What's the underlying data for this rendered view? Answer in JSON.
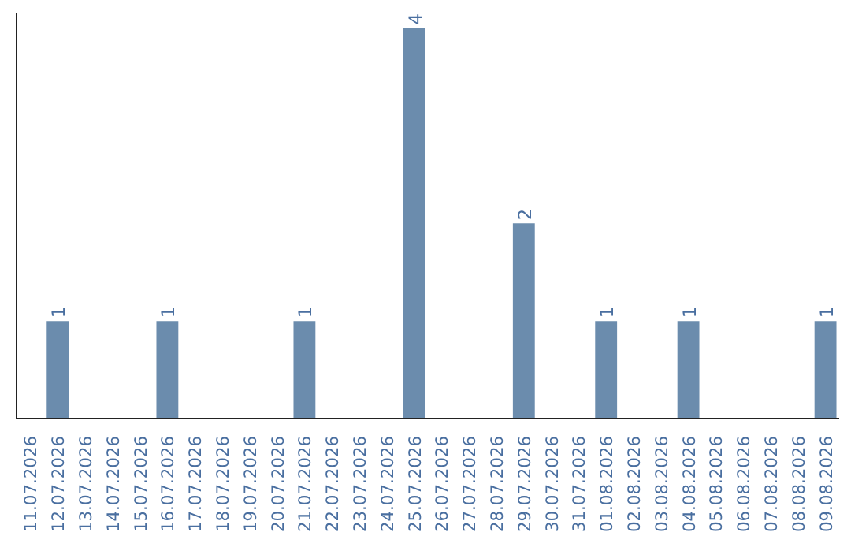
{
  "chart_data": {
    "type": "bar",
    "categories": [
      "11.07.2026",
      "12.07.2026",
      "13.07.2026",
      "14.07.2026",
      "15.07.2026",
      "16.07.2026",
      "17.07.2026",
      "18.07.2026",
      "19.07.2026",
      "20.07.2026",
      "21.07.2026",
      "22.07.2026",
      "23.07.2026",
      "24.07.2026",
      "25.07.2026",
      "26.07.2026",
      "27.07.2026",
      "28.07.2026",
      "29.07.2026",
      "30.07.2026",
      "31.07.2026",
      "01.08.2026",
      "02.08.2026",
      "03.08.2026",
      "04.08.2026",
      "05.08.2026",
      "06.08.2026",
      "07.08.2026",
      "08.08.2026",
      "09.08.2026"
    ],
    "values": [
      0,
      1,
      0,
      0,
      0,
      1,
      0,
      0,
      0,
      0,
      1,
      0,
      0,
      0,
      4,
      0,
      0,
      0,
      2,
      0,
      0,
      1,
      0,
      0,
      1,
      0,
      0,
      0,
      0,
      1
    ],
    "value_labels": [
      null,
      "1",
      null,
      null,
      null,
      "1",
      null,
      null,
      null,
      null,
      "1",
      null,
      null,
      null,
      "4",
      null,
      null,
      null,
      "2",
      null,
      null,
      "1",
      null,
      null,
      "1",
      null,
      null,
      null,
      null,
      "1"
    ],
    "color": "#6b8cad",
    "ylim": [
      0,
      4.15
    ],
    "tick_labels": "x",
    "grid": false
  }
}
